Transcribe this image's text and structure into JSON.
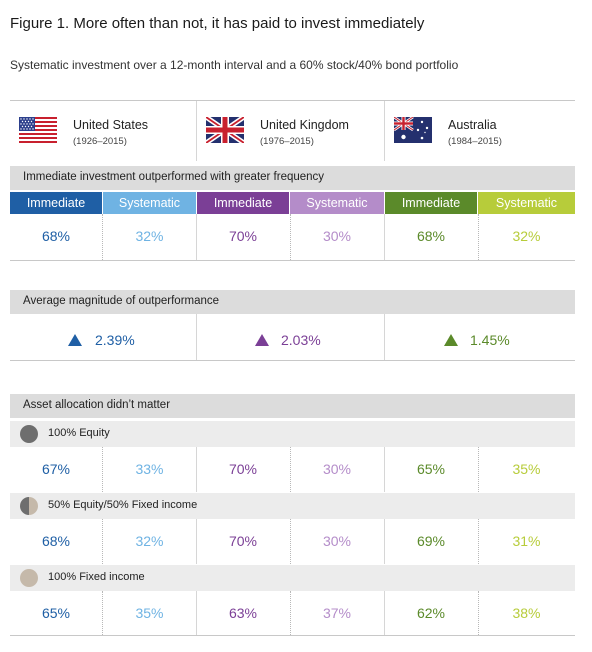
{
  "title": "Figure 1. More often than not, it has paid to invest immediately",
  "subtitle": "Systematic investment over a 12-month interval and a 60% stock/40% bond portfolio",
  "colors": {
    "us_dark": "#1f5fa5",
    "us_light": "#6fb3e3",
    "uk_dark": "#7b3f96",
    "uk_light": "#b48cc9",
    "au_dark": "#5b8a2a",
    "au_light": "#b7cc3a"
  },
  "countries": [
    {
      "name": "United States",
      "years": "(1926–2015)",
      "flag": "us-flag-icon"
    },
    {
      "name": "United Kingdom",
      "years": "(1976–2015)",
      "flag": "uk-flag-icon"
    },
    {
      "name": "Australia",
      "years": "(1984–2015)",
      "flag": "australia-flag-icon"
    }
  ],
  "headers": {
    "immediate": "Immediate",
    "systematic": "Systematic"
  },
  "sections": {
    "frequency": "Immediate investment outperformed with greater frequency",
    "magnitude": "Average magnitude of outperformance",
    "allocation": "Asset allocation didn’t matter"
  },
  "frequency": {
    "us": [
      "68%",
      "32%"
    ],
    "uk": [
      "70%",
      "30%"
    ],
    "au": [
      "68%",
      "32%"
    ]
  },
  "magnitude": {
    "us": "2.39%",
    "uk": "2.03%",
    "au": "1.45%"
  },
  "allocation": [
    {
      "label": "100% Equity",
      "icon": "full-equity-circle-icon",
      "us": [
        "67%",
        "33%"
      ],
      "uk": [
        "70%",
        "30%"
      ],
      "au": [
        "65%",
        "35%"
      ]
    },
    {
      "label": "50% Equity/50% Fixed income",
      "icon": "half-equity-circle-icon",
      "us": [
        "68%",
        "32%"
      ],
      "uk": [
        "70%",
        "30%"
      ],
      "au": [
        "69%",
        "31%"
      ]
    },
    {
      "label": "100% Fixed income",
      "icon": "fixed-income-circle-icon",
      "us": [
        "65%",
        "35%"
      ],
      "uk": [
        "63%",
        "37%"
      ],
      "au": [
        "62%",
        "38%"
      ]
    }
  ]
}
